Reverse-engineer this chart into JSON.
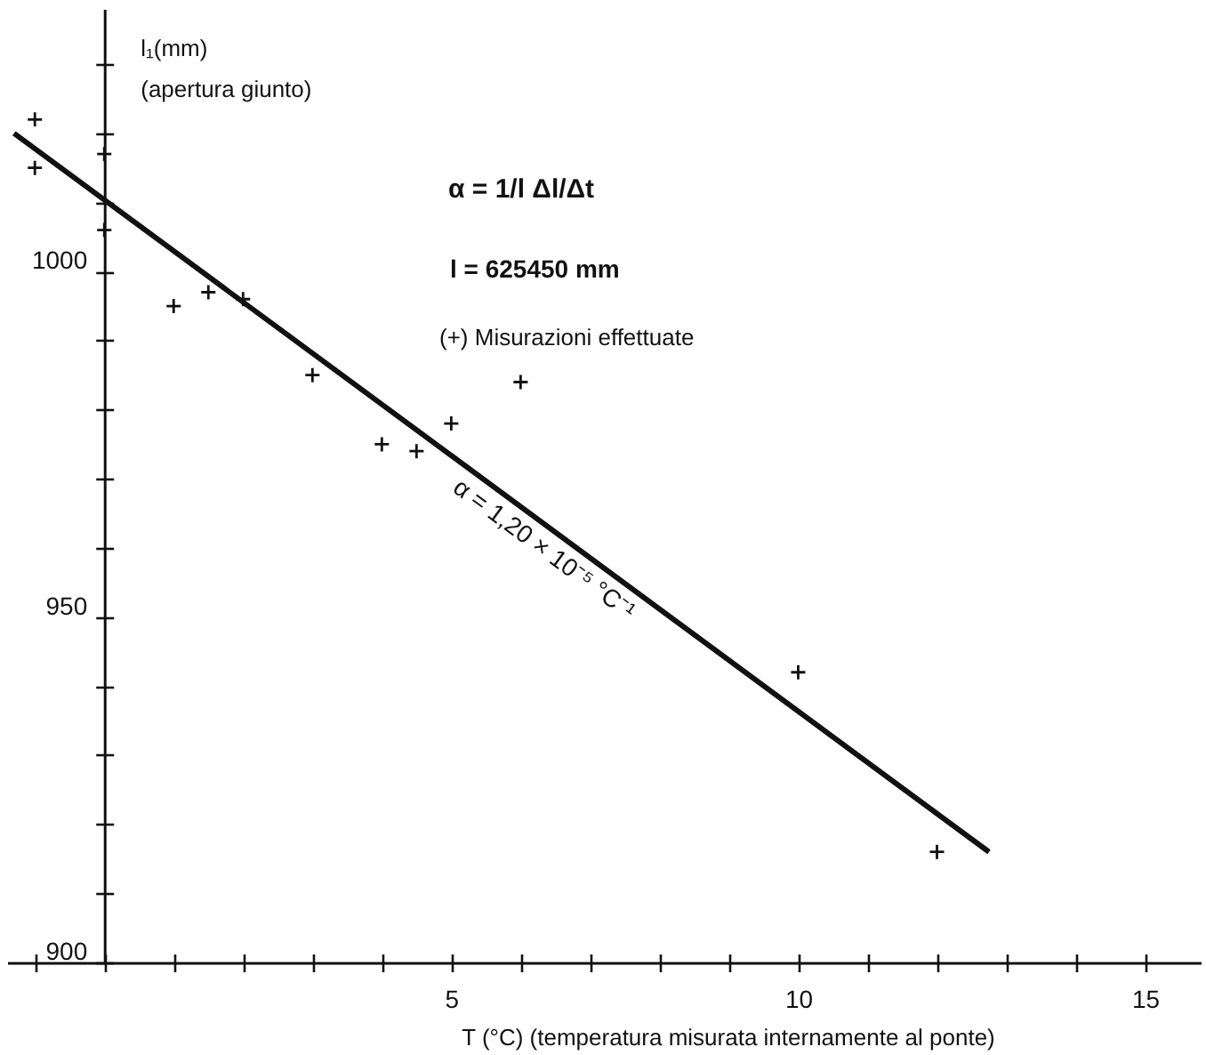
{
  "chart_data": {
    "type": "scatter",
    "xlabel": "T (°C) (temperatura misurata internamente al ponte)",
    "ylabel": "l₁(mm)\n(apertura giunto)",
    "annotations": [
      "α = 1/l Δl/Δt",
      "l = 625450 mm",
      "(+) Misurazioni effettuate",
      {
        "text": "α = 1,20 × 10⁻⁵ °C⁻¹",
        "x": 6.5,
        "y": 962
      }
    ],
    "xlim": [
      -1.4,
      15.8
    ],
    "ylim": [
      900,
      1038
    ],
    "xticks": [
      {
        "value": -1,
        "label": null
      },
      {
        "value": 0,
        "label": null
      },
      {
        "value": 1,
        "label": null
      },
      {
        "value": 2,
        "label": null
      },
      {
        "value": 3,
        "label": null
      },
      {
        "value": 4,
        "label": null
      },
      5,
      {
        "value": 6,
        "label": null
      },
      {
        "value": 7,
        "label": null
      },
      {
        "value": 8,
        "label": null
      },
      {
        "value": 9,
        "label": null
      },
      10,
      {
        "value": 11,
        "label": null
      },
      {
        "value": 12,
        "label": null
      },
      {
        "value": 13,
        "label": null
      },
      {
        "value": 14,
        "label": null
      },
      15
    ],
    "yticks": [
      900,
      {
        "value": 910,
        "label": null
      },
      {
        "value": 920,
        "label": null
      },
      {
        "value": 930,
        "label": null
      },
      {
        "value": 940,
        "label": null
      },
      950,
      {
        "value": 960,
        "label": null
      },
      {
        "value": 970,
        "label": null
      },
      {
        "value": 980,
        "label": null
      },
      {
        "value": 990,
        "label": null
      },
      1000,
      {
        "value": 1010,
        "label": null
      },
      {
        "value": 1020,
        "label": null
      },
      {
        "value": 1030,
        "label": null
      }
    ],
    "series": [
      {
        "color": "#111111",
        "marker": "cross",
        "x": [
          -1,
          -1,
          0,
          0,
          1,
          1.5,
          2,
          3,
          4,
          4.5,
          5,
          6,
          10,
          12
        ],
        "values": [
          1022,
          1015,
          1017,
          1006,
          995,
          997,
          996,
          985,
          975,
          974,
          978,
          984,
          942,
          916
        ]
      },
      {
        "type": "line",
        "color": "#111111",
        "x": [
          -1.3,
          12.75
        ],
        "values": [
          1020,
          916
        ]
      }
    ]
  }
}
